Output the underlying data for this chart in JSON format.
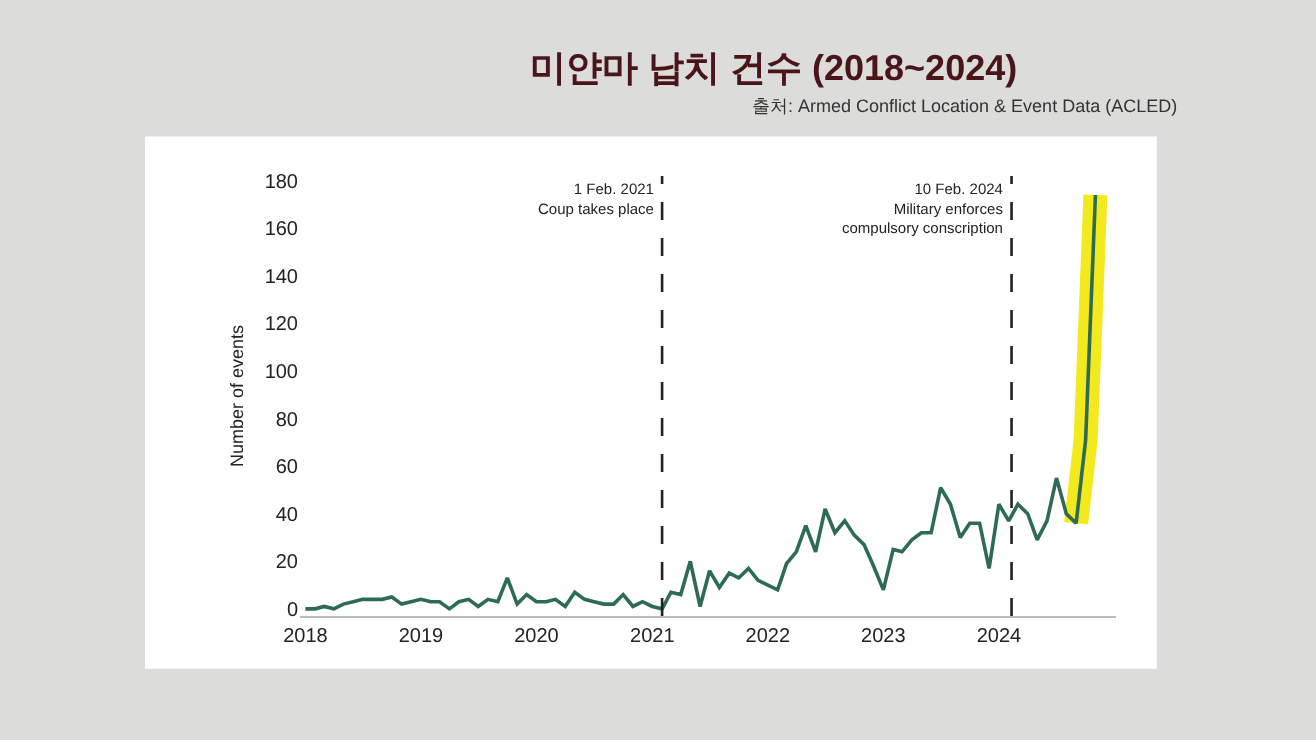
{
  "chart_data": {
    "type": "line",
    "title": "미얀마 납치 건수 (2018~2024)",
    "subtitle": "출처: Armed Conflict Location & Event Data (ACLED)",
    "ylabel": "Number of events",
    "x": [
      "2018-01",
      "2018-02",
      "2018-03",
      "2018-04",
      "2018-05",
      "2018-06",
      "2018-07",
      "2018-08",
      "2018-09",
      "2018-10",
      "2018-11",
      "2018-12",
      "2019-01",
      "2019-02",
      "2019-03",
      "2019-04",
      "2019-05",
      "2019-06",
      "2019-07",
      "2019-08",
      "2019-09",
      "2019-10",
      "2019-11",
      "2019-12",
      "2020-01",
      "2020-02",
      "2020-03",
      "2020-04",
      "2020-05",
      "2020-06",
      "2020-07",
      "2020-08",
      "2020-09",
      "2020-10",
      "2020-11",
      "2020-12",
      "2021-01",
      "2021-02",
      "2021-03",
      "2021-04",
      "2021-05",
      "2021-06",
      "2021-07",
      "2021-08",
      "2021-09",
      "2021-10",
      "2021-11",
      "2021-12",
      "2022-01",
      "2022-02",
      "2022-03",
      "2022-04",
      "2022-05",
      "2022-06",
      "2022-07",
      "2022-08",
      "2022-09",
      "2022-10",
      "2022-11",
      "2022-12",
      "2023-01",
      "2023-02",
      "2023-03",
      "2023-04",
      "2023-05",
      "2023-06",
      "2023-07",
      "2023-08",
      "2023-09",
      "2023-10",
      "2023-11",
      "2023-12",
      "2024-01",
      "2024-02",
      "2024-03",
      "2024-04",
      "2024-05",
      "2024-06",
      "2024-07",
      "2024-08",
      "2024-09",
      "2024-10",
      "2024-11"
    ],
    "series": [
      {
        "color": "#f2ea1c",
        "values": [
          null,
          null,
          null,
          null,
          null,
          null,
          null,
          null,
          null,
          null,
          null,
          null,
          null,
          null,
          null,
          null,
          null,
          null,
          null,
          null,
          null,
          null,
          null,
          null,
          null,
          null,
          null,
          null,
          null,
          null,
          null,
          null,
          null,
          null,
          null,
          null,
          null,
          null,
          null,
          null,
          null,
          null,
          null,
          null,
          null,
          null,
          null,
          null,
          null,
          null,
          null,
          null,
          null,
          null,
          null,
          null,
          null,
          null,
          null,
          null,
          null,
          null,
          null,
          null,
          null,
          null,
          null,
          null,
          null,
          null,
          null,
          null,
          null,
          null,
          null,
          null,
          null,
          null,
          null,
          null,
          36,
          71,
          174
        ]
      },
      {
        "color": "#2e6b55",
        "values": [
          0,
          0,
          1,
          0,
          2,
          3,
          4,
          4,
          4,
          5,
          2,
          3,
          4,
          3,
          3,
          0,
          3,
          4,
          1,
          4,
          3,
          13,
          2,
          6,
          3,
          3,
          4,
          1,
          7,
          4,
          3,
          2,
          2,
          6,
          1,
          3,
          1,
          0,
          7,
          6,
          20,
          1,
          16,
          9,
          15,
          13,
          17,
          12,
          10,
          8,
          19,
          24,
          35,
          24,
          42,
          32,
          37,
          31,
          27,
          18,
          8,
          25,
          24,
          29,
          32,
          32,
          51,
          44,
          30,
          36,
          36,
          17,
          44,
          37,
          44,
          40,
          29,
          37,
          55,
          40,
          36,
          71,
          174
        ]
      }
    ],
    "xlim": [
      "2017-12-15",
      "2025-01-05"
    ],
    "xticks": [
      "2018",
      "2019",
      "2020",
      "2021",
      "2022",
      "2023",
      "2024"
    ],
    "ylim": [
      -3,
      182
    ],
    "yticks": [
      0,
      20,
      40,
      60,
      80,
      100,
      120,
      140,
      160,
      180
    ],
    "ref_lines": [
      {
        "axis": "x",
        "value": "2021-02-01",
        "label": "1 Feb. 2021\nCoup takes place",
        "color": "#222222",
        "line_style": "dashed"
      },
      {
        "axis": "x",
        "value": "2024-02-10",
        "label": "10 Feb. 2024\nMilitary enforces\ncompulsory conscription",
        "color": "#222222",
        "line_style": "dashed"
      }
    ],
    "marker": "none",
    "line_style": "solid"
  }
}
